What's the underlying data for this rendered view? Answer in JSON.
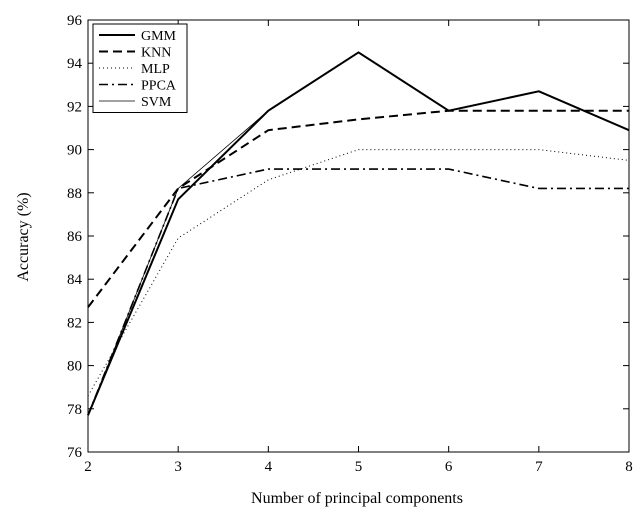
{
  "chart_data": {
    "type": "line",
    "xlabel": "Number of principal components",
    "ylabel": "Accuracy (%)",
    "x": [
      2,
      3,
      4,
      5,
      6,
      7,
      8
    ],
    "xlim": [
      2,
      8
    ],
    "ylim": [
      76,
      96
    ],
    "xticks": [
      "2",
      "3",
      "4",
      "5",
      "6",
      "7",
      "8"
    ],
    "yticks": [
      "76",
      "78",
      "80",
      "82",
      "84",
      "86",
      "88",
      "90",
      "92",
      "94",
      "96"
    ],
    "grid": false,
    "legend_position": "top-left",
    "series": [
      {
        "name": "GMM",
        "values": [
          77.7,
          87.7,
          91.8,
          94.5,
          91.8,
          92.7,
          90.9
        ],
        "style": "solid-thick"
      },
      {
        "name": "KNN",
        "values": [
          82.7,
          88.2,
          90.9,
          91.4,
          91.8,
          91.8,
          91.8
        ],
        "style": "dashed"
      },
      {
        "name": "MLP",
        "values": [
          78.6,
          85.9,
          88.6,
          90.0,
          90.0,
          90.0,
          89.5
        ],
        "style": "dotted"
      },
      {
        "name": "PPCA",
        "values": [
          77.7,
          88.2,
          89.1,
          89.1,
          89.1,
          88.2,
          88.2
        ],
        "style": "dashdot"
      },
      {
        "name": "SVM",
        "values": [
          77.7,
          88.2,
          91.8,
          94.5,
          91.8,
          92.7,
          90.9
        ],
        "style": "solid-thin"
      }
    ]
  }
}
